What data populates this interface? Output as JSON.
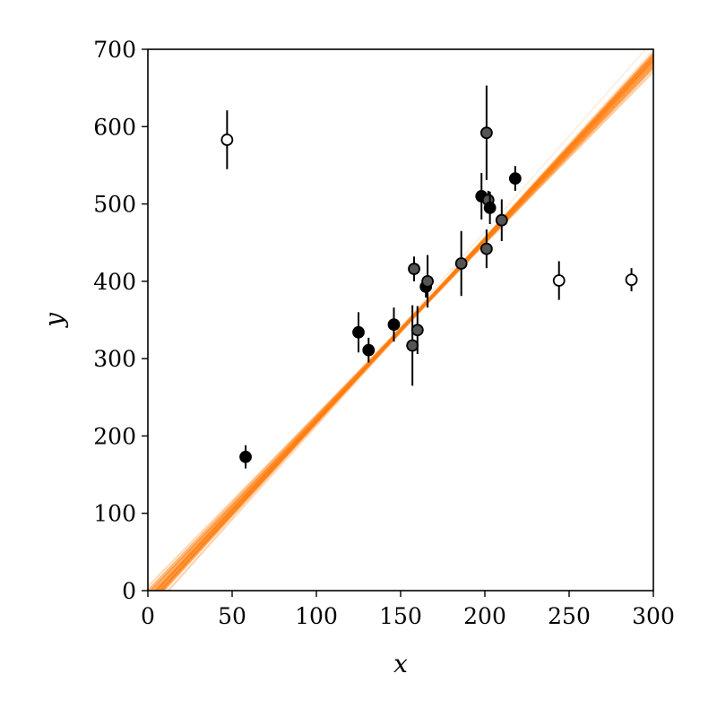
{
  "chart_data": {
    "type": "scatter",
    "title": "",
    "xlabel": "x",
    "ylabel": "y",
    "xlim": [
      0,
      300
    ],
    "ylim": [
      0,
      700
    ],
    "xticks": [
      0,
      50,
      100,
      150,
      200,
      250,
      300
    ],
    "yticks": [
      0,
      100,
      200,
      300,
      400,
      500,
      600,
      700
    ],
    "grid": false,
    "legend": "none",
    "colors": {
      "fit_lines": "#ff7f0e",
      "point_dark": "#000000",
      "point_gray": "#555555",
      "outlier_fill": "#ffffff",
      "error_bar": "#000000"
    },
    "fit_lines": {
      "count": 100,
      "description": "posterior samples of linear fit y = m*x + b",
      "slope_range": [
        2.1,
        2.55
      ],
      "intercept_range": [
        -30,
        60
      ]
    },
    "series": [
      {
        "name": "",
        "marker": "filled",
        "points": [
          {
            "x": 58,
            "y": 173,
            "err": 15,
            "shade": "dark"
          },
          {
            "x": 125,
            "y": 334,
            "err": 26,
            "shade": "dark"
          },
          {
            "x": 131,
            "y": 311,
            "err": 16,
            "shade": "dark"
          },
          {
            "x": 146,
            "y": 344,
            "err": 22,
            "shade": "dark"
          },
          {
            "x": 157,
            "y": 317,
            "err": 52,
            "shade": "gray"
          },
          {
            "x": 158,
            "y": 416,
            "err": 16,
            "shade": "gray"
          },
          {
            "x": 160,
            "y": 337,
            "err": 31,
            "shade": "gray"
          },
          {
            "x": 165,
            "y": 393,
            "err": 14,
            "shade": "dark"
          },
          {
            "x": 166,
            "y": 400,
            "err": 34,
            "shade": "gray"
          },
          {
            "x": 186,
            "y": 423,
            "err": 42,
            "shade": "gray"
          },
          {
            "x": 198,
            "y": 510,
            "err": 30,
            "shade": "dark"
          },
          {
            "x": 201,
            "y": 592,
            "err": 61,
            "shade": "gray"
          },
          {
            "x": 201,
            "y": 442,
            "err": 25,
            "shade": "gray"
          },
          {
            "x": 202,
            "y": 505,
            "err": 12,
            "shade": "gray"
          },
          {
            "x": 203,
            "y": 495,
            "err": 21,
            "shade": "dark"
          },
          {
            "x": 210,
            "y": 479,
            "err": 27,
            "shade": "gray"
          },
          {
            "x": 218,
            "y": 533,
            "err": 16,
            "shade": "dark"
          }
        ]
      },
      {
        "name": "",
        "marker": "open",
        "points": [
          {
            "x": 47,
            "y": 583,
            "err": 38
          },
          {
            "x": 244,
            "y": 401,
            "err": 25
          },
          {
            "x": 287,
            "y": 402,
            "err": 15
          }
        ]
      }
    ]
  }
}
